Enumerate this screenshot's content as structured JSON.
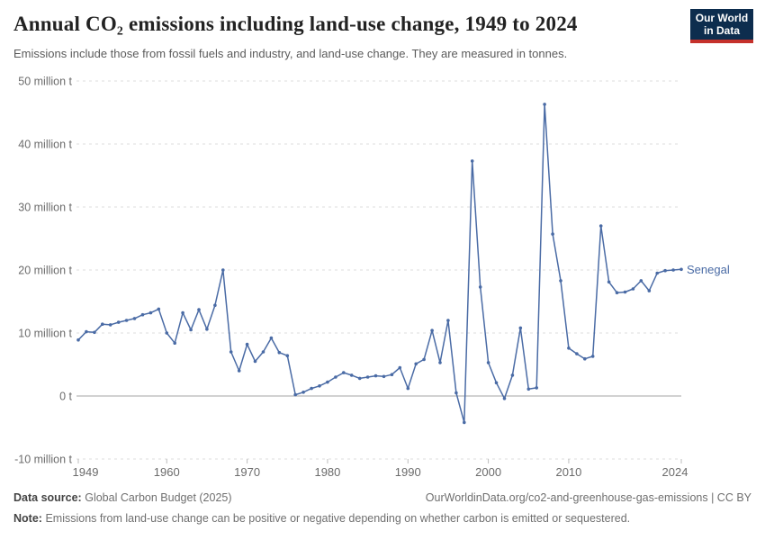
{
  "header": {
    "title": "Annual CO₂ emissions including land-use change, 1949 to 2024",
    "subtitle": "Emissions include those from fossil fuels and industry, and land-use change. They are measured in tonnes.",
    "logo": {
      "line1": "Our World",
      "line2": "in Data",
      "bg_color": "#0d2d4e",
      "accent_color": "#c5312b"
    }
  },
  "chart_data": {
    "type": "line",
    "title": "Annual CO₂ emissions including land-use change, 1949 to 2024",
    "entity": "Senegal",
    "unit": "tonnes",
    "color": "#4a6ba5",
    "grid": true,
    "legend_position": "end-of-line-label",
    "xlim": [
      1949,
      2024
    ],
    "ylim": [
      -10,
      50
    ],
    "xticks": [
      1949,
      1960,
      1970,
      1980,
      1990,
      2000,
      2010,
      2024
    ],
    "yticks": [
      {
        "value": 50,
        "label": "50 million t"
      },
      {
        "value": 40,
        "label": "40 million t"
      },
      {
        "value": 30,
        "label": "30 million t"
      },
      {
        "value": 20,
        "label": "20 million t"
      },
      {
        "value": 10,
        "label": "10 million t"
      },
      {
        "value": 0,
        "label": "0 t"
      },
      {
        "value": -10,
        "label": "-10 million t"
      }
    ],
    "x": [
      1949,
      1950,
      1951,
      1952,
      1953,
      1954,
      1955,
      1956,
      1957,
      1958,
      1959,
      1960,
      1961,
      1962,
      1963,
      1964,
      1965,
      1966,
      1967,
      1968,
      1969,
      1970,
      1971,
      1972,
      1973,
      1974,
      1975,
      1976,
      1977,
      1978,
      1979,
      1980,
      1981,
      1982,
      1983,
      1984,
      1985,
      1986,
      1987,
      1988,
      1989,
      1990,
      1991,
      1992,
      1993,
      1994,
      1995,
      1996,
      1997,
      1998,
      1999,
      2000,
      2001,
      2002,
      2003,
      2004,
      2005,
      2006,
      2007,
      2008,
      2009,
      2010,
      2011,
      2012,
      2013,
      2014,
      2015,
      2016,
      2017,
      2018,
      2019,
      2020,
      2021,
      2022,
      2023,
      2024
    ],
    "values": [
      8.9,
      10.2,
      10.1,
      11.4,
      11.3,
      11.7,
      12.0,
      12.3,
      12.9,
      13.2,
      13.8,
      10.0,
      8.4,
      13.2,
      10.5,
      13.7,
      10.6,
      14.4,
      20.0,
      7.0,
      4.0,
      8.2,
      5.5,
      7.0,
      9.2,
      6.9,
      6.4,
      0.2,
      0.6,
      1.2,
      1.6,
      2.2,
      3.0,
      3.7,
      3.3,
      2.8,
      3.0,
      3.2,
      3.1,
      3.4,
      4.5,
      1.2,
      5.1,
      5.8,
      10.4,
      5.3,
      12.0,
      0.5,
      -4.2,
      37.3,
      17.3,
      5.3,
      2.1,
      -0.4,
      3.3,
      10.8,
      1.1,
      1.3,
      46.3,
      25.7,
      18.3,
      7.6,
      6.7,
      5.9,
      6.3,
      27.0,
      18.1,
      16.4,
      16.5,
      17.0,
      18.3,
      16.7,
      19.5,
      19.9,
      20.0,
      20.1
    ]
  },
  "footer": {
    "source_label": "Data source:",
    "source_value": "Global Carbon Budget (2025)",
    "citation": "OurWorldinData.org/co2-and-greenhouse-gas-emissions | CC BY",
    "note_label": "Note:",
    "note_value": "Emissions from land-use change can be positive or negative depending on whether carbon is emitted or sequestered."
  }
}
